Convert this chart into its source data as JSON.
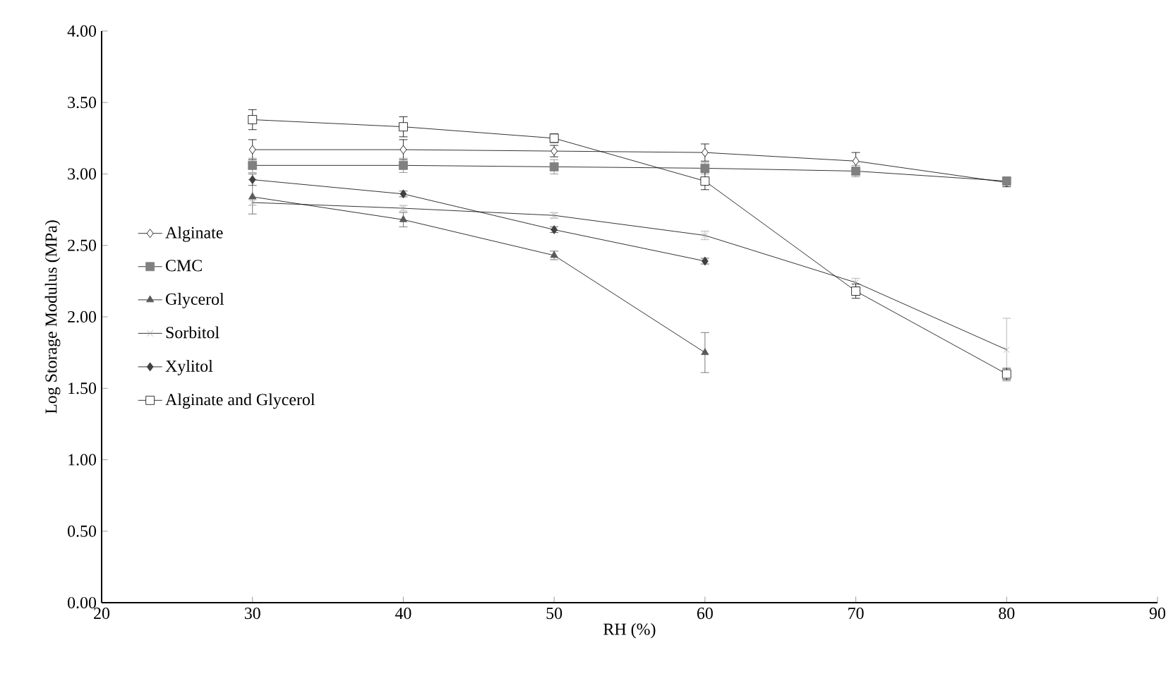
{
  "chart_data": {
    "type": "line",
    "xlabel": "RH (%)",
    "ylabel": "Log Storage Modulus (MPa)",
    "xlim": [
      20,
      90
    ],
    "xticks": [
      20,
      30,
      40,
      50,
      60,
      70,
      80,
      90
    ],
    "ylim": [
      0,
      4
    ],
    "yticks": [
      {
        "value": 0,
        "label": "0.00"
      },
      {
        "value": 0.5,
        "label": "0.50"
      },
      {
        "value": 1,
        "label": "1.00"
      },
      {
        "value": 1.5,
        "label": "1.50"
      },
      {
        "value": 2,
        "label": "2.00"
      },
      {
        "value": 2.5,
        "label": "2.50"
      },
      {
        "value": 3,
        "label": "3.00"
      },
      {
        "value": 3.5,
        "label": "3.50"
      },
      {
        "value": 4,
        "label": "4.00"
      }
    ],
    "grid": false,
    "legend": "left",
    "line_style": "solid",
    "series": [
      {
        "name": "Alginate",
        "color": "#ffffff",
        "marker": "diamond",
        "x": [
          30,
          40,
          50,
          60,
          70,
          80
        ],
        "values": [
          3.17,
          3.17,
          3.16,
          3.15,
          3.09,
          2.94
        ],
        "errors": [
          0.07,
          0.07,
          0.04,
          0.06,
          0.06,
          0.03
        ]
      },
      {
        "name": "CMC",
        "color": "#808080",
        "marker": "square",
        "x": [
          30,
          40,
          50,
          60,
          70,
          80
        ],
        "values": [
          3.06,
          3.06,
          3.05,
          3.04,
          3.02,
          2.95
        ],
        "errors": [
          0.05,
          0.05,
          0.05,
          0.04,
          0.04,
          0.03
        ]
      },
      {
        "name": "Glycerol",
        "color": "#595959",
        "marker": "triangle",
        "x": [
          30,
          40,
          50,
          60
        ],
        "values": [
          2.84,
          2.68,
          2.43,
          1.75
        ],
        "errors": [
          0.12,
          0.05,
          0.03,
          0.14
        ]
      },
      {
        "name": "Sorbitol",
        "color": "#a6a6a6",
        "marker": "cross",
        "x": [
          30,
          40,
          50,
          60,
          70,
          80
        ],
        "values": [
          2.8,
          2.76,
          2.71,
          2.57,
          2.24,
          1.77
        ],
        "errors": [
          0.02,
          0.02,
          0.02,
          0.03,
          0.03,
          0.22
        ]
      },
      {
        "name": "Xylitol",
        "color": "#404040",
        "marker": "diamond",
        "x": [
          30,
          40,
          50,
          60
        ],
        "values": [
          2.96,
          2.86,
          2.61,
          2.39
        ],
        "errors": [
          0.04,
          0.02,
          0.02,
          0.02
        ]
      },
      {
        "name": "Alginate and Glycerol",
        "color": "#ffffff",
        "marker": "square",
        "x": [
          30,
          40,
          50,
          60,
          70,
          80
        ],
        "values": [
          3.38,
          3.33,
          3.25,
          2.95,
          2.18,
          1.6
        ],
        "errors": [
          0.07,
          0.07,
          0.03,
          0.06,
          0.05,
          0.04
        ]
      }
    ]
  }
}
